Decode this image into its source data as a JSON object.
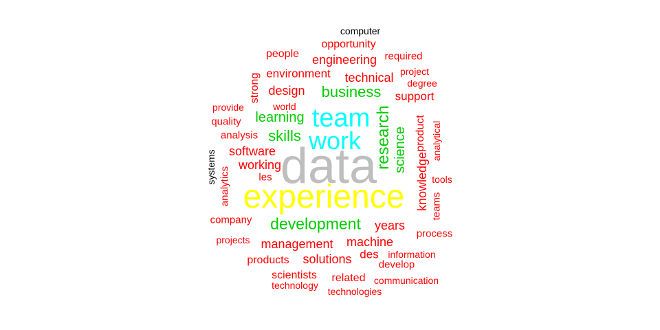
{
  "colors": {
    "gray": "#bebebe",
    "yellow": "#ffff00",
    "cyan": "#00ffff",
    "green": "#00cd00",
    "red": "#ff0000",
    "black": "#000000"
  },
  "words": [
    {
      "text": "data",
      "color": "gray"
    },
    {
      "text": "experience",
      "color": "yellow"
    },
    {
      "text": "team",
      "color": "cyan"
    },
    {
      "text": "work",
      "color": "cyan"
    },
    {
      "text": "development",
      "color": "green"
    },
    {
      "text": "research",
      "color": "green"
    },
    {
      "text": "business",
      "color": "green"
    },
    {
      "text": "skills",
      "color": "green"
    },
    {
      "text": "learning",
      "color": "green"
    },
    {
      "text": "science",
      "color": "green"
    },
    {
      "text": "computer",
      "color": "black"
    },
    {
      "text": "systems",
      "color": "black"
    },
    {
      "text": "opportunity",
      "color": "red"
    },
    {
      "text": "people",
      "color": "red"
    },
    {
      "text": "required",
      "color": "red"
    },
    {
      "text": "engineering",
      "color": "red"
    },
    {
      "text": "environment",
      "color": "red"
    },
    {
      "text": "technical",
      "color": "red"
    },
    {
      "text": "project",
      "color": "red"
    },
    {
      "text": "strong",
      "color": "red"
    },
    {
      "text": "degree",
      "color": "red"
    },
    {
      "text": "design",
      "color": "red"
    },
    {
      "text": "support",
      "color": "red"
    },
    {
      "text": "provide",
      "color": "red"
    },
    {
      "text": "world",
      "color": "red"
    },
    {
      "text": "quality",
      "color": "red"
    },
    {
      "text": "product",
      "color": "red"
    },
    {
      "text": "analytical",
      "color": "red"
    },
    {
      "text": "analysis",
      "color": "red"
    },
    {
      "text": "software",
      "color": "red"
    },
    {
      "text": "knowledge",
      "color": "red"
    },
    {
      "text": "working",
      "color": "red"
    },
    {
      "text": "les",
      "color": "red"
    },
    {
      "text": "tools",
      "color": "red"
    },
    {
      "text": "analytics",
      "color": "red"
    },
    {
      "text": "teams",
      "color": "red"
    },
    {
      "text": "company",
      "color": "red"
    },
    {
      "text": "years",
      "color": "red"
    },
    {
      "text": "process",
      "color": "red"
    },
    {
      "text": "projects",
      "color": "red"
    },
    {
      "text": "management",
      "color": "red"
    },
    {
      "text": "machine",
      "color": "red"
    },
    {
      "text": "information",
      "color": "red"
    },
    {
      "text": "des",
      "color": "red"
    },
    {
      "text": "products",
      "color": "red"
    },
    {
      "text": "solutions",
      "color": "red"
    },
    {
      "text": "develop",
      "color": "red"
    },
    {
      "text": "scientists",
      "color": "red"
    },
    {
      "text": "related",
      "color": "red"
    },
    {
      "text": "communication",
      "color": "red"
    },
    {
      "text": "technology",
      "color": "red"
    },
    {
      "text": "technologies",
      "color": "red"
    }
  ]
}
